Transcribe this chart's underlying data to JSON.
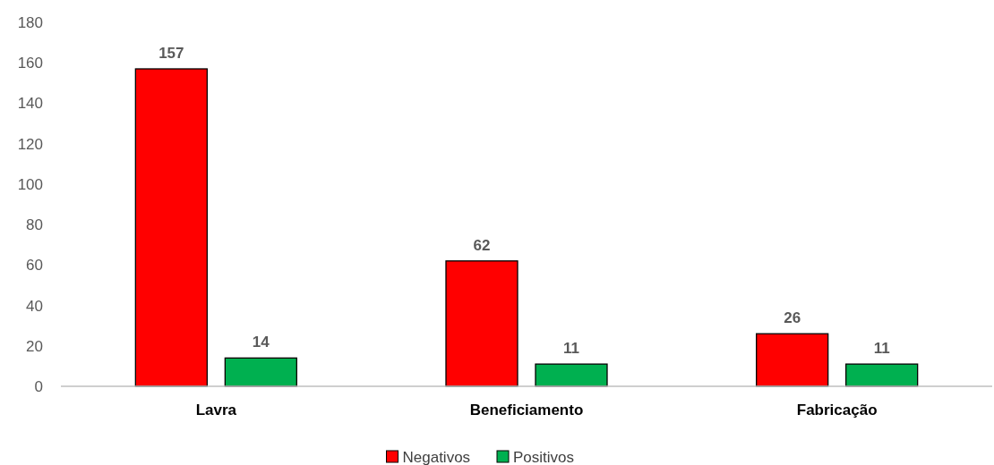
{
  "chart_data": {
    "type": "bar",
    "categories": [
      "Lavra",
      "Beneficiamento",
      "Fabricação"
    ],
    "series": [
      {
        "name": "Negativos",
        "color": "#ff0000",
        "values": [
          157,
          62,
          26
        ]
      },
      {
        "name": "Positivos",
        "color": "#00b050",
        "values": [
          14,
          11,
          11
        ]
      }
    ],
    "ylim": [
      0,
      180
    ],
    "yticks": [
      0,
      20,
      40,
      60,
      80,
      100,
      120,
      140,
      160,
      180
    ],
    "data_labels": true,
    "legend": "bottom",
    "grid": false
  }
}
